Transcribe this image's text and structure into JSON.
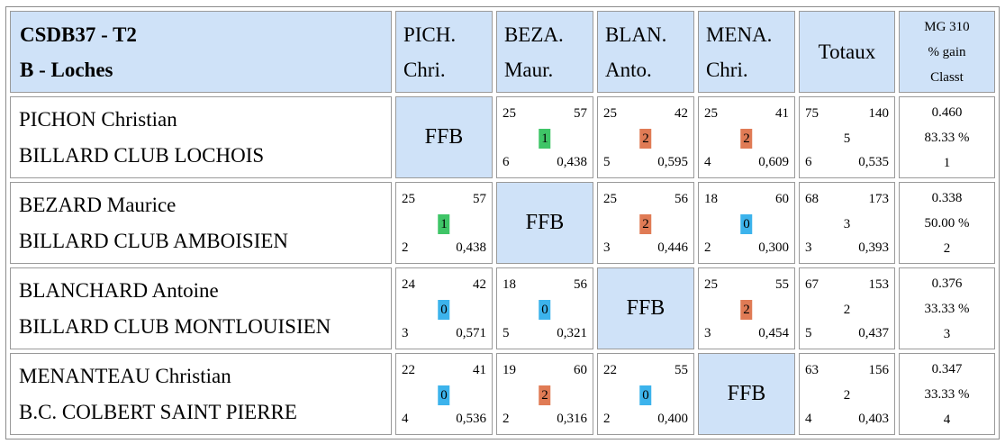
{
  "header": {
    "title_line1": "CSDB37 - T2",
    "title_line2": "B - Loches",
    "columns": [
      {
        "line1": "PICH.",
        "line2": "Chri."
      },
      {
        "line1": "BEZA.",
        "line2": "Maur."
      },
      {
        "line1": "BLAN.",
        "line2": "Anto."
      },
      {
        "line1": "MENA.",
        "line2": "Chri."
      }
    ],
    "totals_label": "Totaux",
    "mg_line1": "MG 310",
    "mg_line2": "% gain",
    "mg_line3": "Classt"
  },
  "ffb_label": "FFB",
  "rows": [
    {
      "name": "PICHON Christian",
      "club": "BILLARD CLUB LOCHOIS",
      "cells": [
        null,
        {
          "a": "25",
          "b": "57",
          "pts": "1",
          "c": "6",
          "d": "0,438"
        },
        {
          "a": "25",
          "b": "42",
          "pts": "2",
          "c": "5",
          "d": "0,595"
        },
        {
          "a": "25",
          "b": "41",
          "pts": "2",
          "c": "4",
          "d": "0,609"
        }
      ],
      "totals": {
        "a": "75",
        "b": "140",
        "mid": "5",
        "c": "6",
        "d": "0,535"
      },
      "mg": {
        "avg": "0.460",
        "gain": "83.33 %",
        "rank": "1"
      }
    },
    {
      "name": "BEZARD Maurice",
      "club": "BILLARD CLUB AMBOISIEN",
      "cells": [
        {
          "a": "25",
          "b": "57",
          "pts": "1",
          "c": "2",
          "d": "0,438"
        },
        null,
        {
          "a": "25",
          "b": "56",
          "pts": "2",
          "c": "3",
          "d": "0,446"
        },
        {
          "a": "18",
          "b": "60",
          "pts": "0",
          "c": "2",
          "d": "0,300"
        }
      ],
      "totals": {
        "a": "68",
        "b": "173",
        "mid": "3",
        "c": "3",
        "d": "0,393"
      },
      "mg": {
        "avg": "0.338",
        "gain": "50.00 %",
        "rank": "2"
      }
    },
    {
      "name": "BLANCHARD Antoine",
      "club": "BILLARD CLUB MONTLOUISIEN",
      "cells": [
        {
          "a": "24",
          "b": "42",
          "pts": "0",
          "c": "3",
          "d": "0,571"
        },
        {
          "a": "18",
          "b": "56",
          "pts": "0",
          "c": "5",
          "d": "0,321"
        },
        null,
        {
          "a": "25",
          "b": "55",
          "pts": "2",
          "c": "3",
          "d": "0,454"
        }
      ],
      "totals": {
        "a": "67",
        "b": "153",
        "mid": "2",
        "c": "5",
        "d": "0,437"
      },
      "mg": {
        "avg": "0.376",
        "gain": "33.33 %",
        "rank": "3"
      }
    },
    {
      "name": "MENANTEAU Christian",
      "club": "B.C. COLBERT SAINT PIERRE",
      "cells": [
        {
          "a": "22",
          "b": "41",
          "pts": "0",
          "c": "4",
          "d": "0,536"
        },
        {
          "a": "19",
          "b": "60",
          "pts": "2",
          "c": "2",
          "d": "0,316"
        },
        {
          "a": "22",
          "b": "55",
          "pts": "0",
          "c": "2",
          "d": "0,400"
        },
        null
      ],
      "totals": {
        "a": "63",
        "b": "156",
        "mid": "2",
        "c": "4",
        "d": "0,403"
      },
      "mg": {
        "avg": "0.347",
        "gain": "33.33 %",
        "rank": "4"
      }
    }
  ],
  "colors": {
    "header_bg": "#cfe2f8",
    "win_2": "#e07b55",
    "draw_1": "#3fc567",
    "loss_0": "#3cb3ec"
  }
}
